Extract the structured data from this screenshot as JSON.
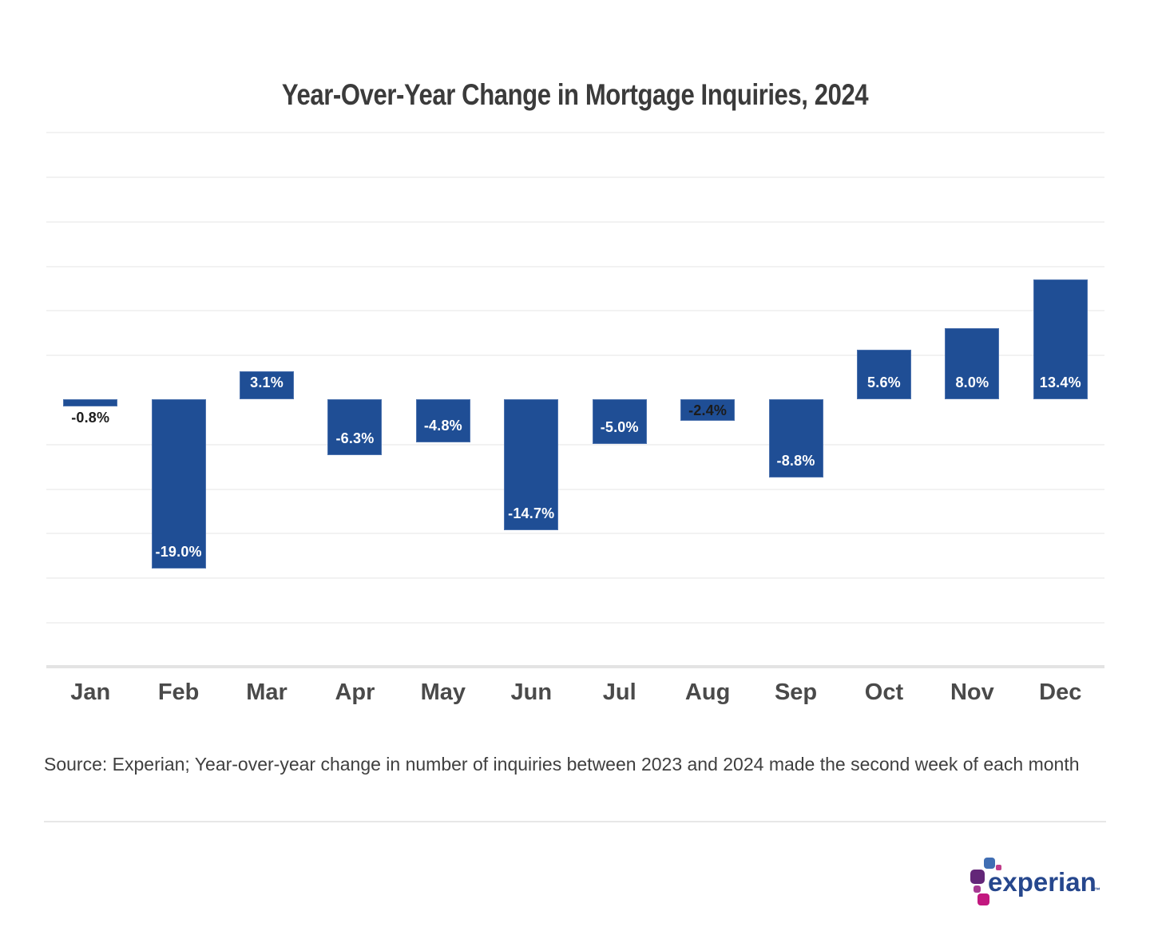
{
  "source_note": "Source: Experian; Year-over-year change in number of inquiries between 2023 and 2024 made the second week of each month",
  "logo": {
    "brand": "experian",
    "trademark": "™",
    "wordmark_color": "#26478d",
    "mark_colors": {
      "blue_square": "#406eb3",
      "top_dot": "#c13d8a",
      "purple_square": "#632678",
      "mid_dot": "#a63a92",
      "magenta_square": "#c2187f"
    }
  },
  "colors": {
    "bar": "#1f4e95",
    "label_on_bar": "#ffffff",
    "label_dark": "#1c1c1c",
    "gridline": "#f2f2f2",
    "axis_line": "#e3e3e3",
    "title_text": "#3b3b3b",
    "month_text": "#4a4a4a"
  },
  "chart_data": {
    "type": "bar",
    "title": "Year-Over-Year Change in Mortgage Inquiries, 2024",
    "categories": [
      "Jan",
      "Feb",
      "Mar",
      "Apr",
      "May",
      "Jun",
      "Jul",
      "Aug",
      "Sep",
      "Oct",
      "Nov",
      "Dec"
    ],
    "values": [
      -0.8,
      -19.0,
      3.1,
      -6.3,
      -4.8,
      -14.7,
      -5.0,
      -2.4,
      -8.8,
      5.6,
      8.0,
      13.4
    ],
    "value_labels": [
      "-0.8%",
      "-19.0%",
      "3.1%",
      "-6.3%",
      "-4.8%",
      "-14.7%",
      "-5.0%",
      "-2.4%",
      "-8.8%",
      "5.6%",
      "8.0%",
      "13.4%"
    ],
    "xlabel": "",
    "ylabel": "",
    "ylim": [
      -30,
      30
    ],
    "gridline_step_pct": 5,
    "grid": true,
    "legend": "none",
    "y_axis_labels_visible": false
  }
}
